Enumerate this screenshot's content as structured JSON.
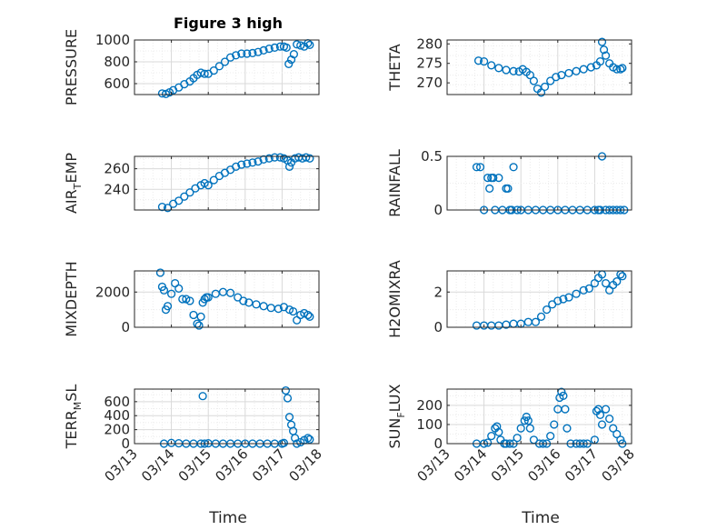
{
  "title": "Figure 3 high",
  "xlabel": "Time",
  "x_tick_labels": [
    "03/13",
    "03/14",
    "03/15",
    "03/16",
    "03/17",
    "03/18"
  ],
  "marker_color": "#0072bd",
  "chart_data": [
    {
      "type": "scatter",
      "ylabel": "PRESSURE",
      "ylabel_sub": "",
      "ylabel_after": "",
      "xlim": [
        13.0,
        18.0
      ],
      "ylim": [
        500,
        1000
      ],
      "yticks": [
        600,
        800,
        1000
      ],
      "x": [
        13.75,
        13.85,
        13.95,
        14.05,
        14.2,
        14.35,
        14.5,
        14.6,
        14.7,
        14.8,
        14.9,
        15.0,
        15.15,
        15.3,
        15.45,
        15.6,
        15.75,
        15.9,
        16.05,
        16.2,
        16.35,
        16.5,
        16.65,
        16.8,
        16.95,
        17.05,
        17.12,
        17.18,
        17.25,
        17.32,
        17.4,
        17.5,
        17.6,
        17.7,
        17.75
      ],
      "y": [
        510,
        505,
        520,
        540,
        565,
        595,
        620,
        650,
        680,
        700,
        690,
        690,
        720,
        760,
        800,
        840,
        860,
        875,
        875,
        880,
        890,
        905,
        920,
        930,
        940,
        940,
        930,
        780,
        820,
        870,
        960,
        950,
        940,
        970,
        955
      ]
    },
    {
      "type": "scatter",
      "ylabel": "THETA",
      "ylabel_sub": "",
      "ylabel_after": "",
      "xlim": [
        13.0,
        18.0
      ],
      "ylim": [
        267,
        281
      ],
      "yticks": [
        270,
        275,
        280
      ],
      "x": [
        13.85,
        14.0,
        14.2,
        14.4,
        14.6,
        14.8,
        14.95,
        15.05,
        15.15,
        15.25,
        15.35,
        15.45,
        15.55,
        15.65,
        15.8,
        15.95,
        16.1,
        16.3,
        16.5,
        16.7,
        16.9,
        17.05,
        17.15,
        17.2,
        17.25,
        17.3,
        17.4,
        17.5,
        17.6,
        17.7,
        17.75
      ],
      "y": [
        275.7,
        275.5,
        274.5,
        273.8,
        273.3,
        273.0,
        272.9,
        273.5,
        272.8,
        272.0,
        270.5,
        268.5,
        267.5,
        269.0,
        270.5,
        271.5,
        272.0,
        272.5,
        273.0,
        273.5,
        274.0,
        274.5,
        275.5,
        280.5,
        278.5,
        277.0,
        275.0,
        274.0,
        273.5,
        273.5,
        273.8
      ]
    },
    {
      "type": "scatter",
      "ylabel": "AIR",
      "ylabel_sub": "T",
      "ylabel_after": "EMP",
      "xlim": [
        13.0,
        18.0
      ],
      "ylim": [
        220,
        272
      ],
      "yticks": [
        240,
        260
      ],
      "x": [
        13.75,
        13.9,
        14.05,
        14.2,
        14.35,
        14.5,
        14.65,
        14.8,
        14.9,
        15.0,
        15.15,
        15.3,
        15.45,
        15.6,
        15.75,
        15.9,
        16.05,
        16.2,
        16.35,
        16.5,
        16.65,
        16.8,
        16.95,
        17.05,
        17.15,
        17.2,
        17.25,
        17.35,
        17.45,
        17.55,
        17.65,
        17.75
      ],
      "y": [
        223,
        222,
        226,
        229,
        233,
        237,
        241,
        244,
        246,
        244,
        249,
        253,
        256,
        259,
        262,
        264,
        265,
        266,
        267,
        269,
        270,
        271,
        271,
        270,
        268,
        262,
        266,
        270,
        271,
        270,
        271,
        270
      ]
    },
    {
      "type": "scatter",
      "ylabel": "RAINFALL",
      "ylabel_sub": "",
      "ylabel_after": "",
      "xlim": [
        13.0,
        18.0
      ],
      "ylim": [
        0,
        0.5
      ],
      "yticks": [
        0,
        0.5
      ],
      "x": [
        13.8,
        13.9,
        14.0,
        14.1,
        14.15,
        14.2,
        14.25,
        14.3,
        14.4,
        14.5,
        14.6,
        14.65,
        14.7,
        14.75,
        14.8,
        14.9,
        15.0,
        15.2,
        15.4,
        15.6,
        15.8,
        16.0,
        16.2,
        16.4,
        16.6,
        16.8,
        17.0,
        17.1,
        17.15,
        17.2,
        17.3,
        17.4,
        17.5,
        17.6,
        17.7,
        17.8
      ],
      "y": [
        0.4,
        0.4,
        0,
        0.3,
        0.2,
        0.3,
        0.3,
        0,
        0.3,
        0,
        0.2,
        0.2,
        0,
        0,
        0.4,
        0,
        0,
        0,
        0,
        0,
        0,
        0,
        0,
        0,
        0,
        0,
        0,
        0,
        0,
        0.5,
        0,
        0,
        0,
        0,
        0,
        0
      ]
    },
    {
      "type": "scatter",
      "ylabel": "MIXDEPTH",
      "ylabel_sub": "",
      "ylabel_after": "",
      "xlim": [
        13.0,
        18.0
      ],
      "ylim": [
        0,
        3200
      ],
      "yticks": [
        0,
        2000
      ],
      "x": [
        13.7,
        13.75,
        13.8,
        13.85,
        13.9,
        14.0,
        14.1,
        14.2,
        14.3,
        14.4,
        14.5,
        14.6,
        14.7,
        14.75,
        14.8,
        14.85,
        14.9,
        14.95,
        15.0,
        15.2,
        15.4,
        15.6,
        15.8,
        15.95,
        16.1,
        16.3,
        16.5,
        16.7,
        16.9,
        17.05,
        17.2,
        17.3,
        17.4,
        17.5,
        17.6,
        17.7,
        17.75
      ],
      "y": [
        3100,
        2300,
        2100,
        1000,
        1200,
        1900,
        2500,
        2200,
        1600,
        1600,
        1500,
        700,
        200,
        100,
        600,
        1400,
        1600,
        1700,
        1700,
        1900,
        2000,
        1950,
        1700,
        1500,
        1400,
        1300,
        1200,
        1100,
        1050,
        1150,
        1000,
        900,
        400,
        700,
        800,
        700,
        600
      ]
    },
    {
      "type": "scatter",
      "ylabel": "H2OMIXRA",
      "ylabel_sub": "",
      "ylabel_after": "",
      "xlim": [
        13.0,
        18.0
      ],
      "ylim": [
        0,
        3.2
      ],
      "yticks": [
        0,
        2
      ],
      "x": [
        13.8,
        14.0,
        14.2,
        14.4,
        14.6,
        14.8,
        15.0,
        15.2,
        15.4,
        15.55,
        15.7,
        15.85,
        16.0,
        16.15,
        16.3,
        16.5,
        16.7,
        16.85,
        17.0,
        17.1,
        17.2,
        17.3,
        17.4,
        17.5,
        17.6,
        17.7,
        17.75
      ],
      "y": [
        0.1,
        0.1,
        0.1,
        0.1,
        0.15,
        0.2,
        0.2,
        0.3,
        0.3,
        0.6,
        1.0,
        1.3,
        1.5,
        1.6,
        1.7,
        1.9,
        2.1,
        2.2,
        2.5,
        2.8,
        3.0,
        2.5,
        2.1,
        2.4,
        2.6,
        3.0,
        2.9
      ]
    },
    {
      "type": "scatter",
      "ylabel": "TERR",
      "ylabel_sub": "M",
      "ylabel_after": "SL",
      "xlim": [
        13.0,
        18.0
      ],
      "ylim": [
        0,
        780
      ],
      "yticks": [
        0,
        200,
        400,
        600
      ],
      "x": [
        13.8,
        14.0,
        14.2,
        14.4,
        14.6,
        14.8,
        14.85,
        14.9,
        15.0,
        15.2,
        15.4,
        15.6,
        15.8,
        16.0,
        16.2,
        16.4,
        16.6,
        16.8,
        17.0,
        17.05,
        17.1,
        17.15,
        17.2,
        17.25,
        17.3,
        17.35,
        17.4,
        17.5,
        17.6,
        17.7,
        17.75
      ],
      "y": [
        0,
        10,
        5,
        0,
        0,
        0,
        680,
        0,
        5,
        0,
        0,
        0,
        0,
        0,
        0,
        0,
        0,
        0,
        0,
        10,
        760,
        650,
        380,
        270,
        180,
        80,
        0,
        20,
        50,
        80,
        60
      ]
    },
    {
      "type": "scatter",
      "ylabel": "SUN",
      "ylabel_sub": "F",
      "ylabel_after": "LUX",
      "xlim": [
        13.0,
        18.0
      ],
      "ylim": [
        0,
        285
      ],
      "yticks": [
        0,
        100,
        200
      ],
      "x": [
        13.8,
        14.0,
        14.1,
        14.2,
        14.3,
        14.35,
        14.4,
        14.45,
        14.55,
        14.6,
        14.7,
        14.8,
        14.9,
        15.0,
        15.1,
        15.15,
        15.2,
        15.25,
        15.35,
        15.5,
        15.6,
        15.7,
        15.8,
        15.9,
        16.0,
        16.05,
        16.1,
        16.15,
        16.2,
        16.25,
        16.35,
        16.5,
        16.6,
        16.7,
        16.8,
        17.0,
        17.05,
        17.1,
        17.15,
        17.2,
        17.3,
        17.4,
        17.5,
        17.6,
        17.7,
        17.75
      ],
      "y": [
        0,
        0,
        5,
        40,
        80,
        90,
        60,
        20,
        0,
        0,
        0,
        0,
        30,
        80,
        120,
        140,
        120,
        80,
        20,
        0,
        0,
        0,
        40,
        100,
        180,
        240,
        270,
        250,
        180,
        80,
        0,
        0,
        0,
        0,
        0,
        20,
        170,
        180,
        150,
        100,
        180,
        130,
        80,
        50,
        20,
        0
      ]
    }
  ]
}
